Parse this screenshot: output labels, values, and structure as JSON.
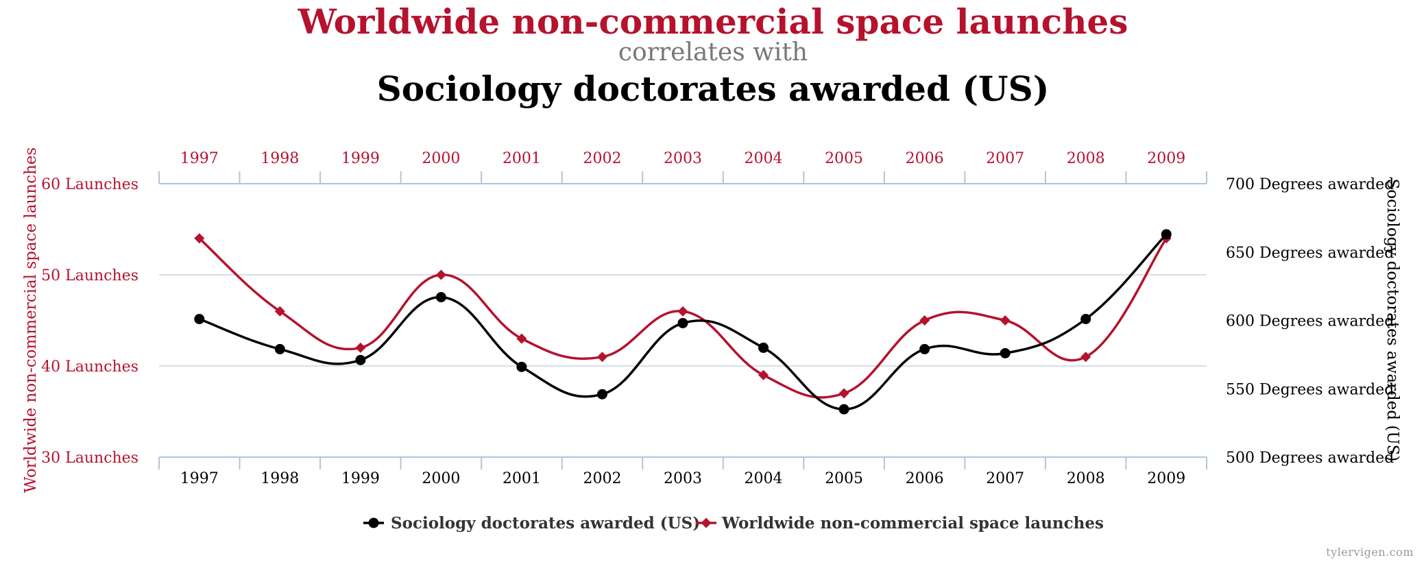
{
  "titles": {
    "primary": "Worldwide non-commercial space launches",
    "connector": "correlates with",
    "secondary": "Sociology doctorates awarded (US)"
  },
  "credit": "tylervigen.com",
  "colors": {
    "launches": "#b5122e",
    "doctorates": "#000000",
    "grid": "#c9d6e3",
    "axis": "#b0c4de"
  },
  "chart_data": {
    "type": "line",
    "x": [
      "1997",
      "1998",
      "1999",
      "2000",
      "2001",
      "2002",
      "2003",
      "2004",
      "2005",
      "2006",
      "2007",
      "2008",
      "2009"
    ],
    "series": [
      {
        "name": "Sociology doctorates awarded (US)",
        "axis": "right",
        "marker": "circle",
        "values": [
          601,
          579,
          571,
          617,
          566,
          546,
          598,
          580,
          535,
          579,
          576,
          601,
          663
        ]
      },
      {
        "name": "Worldwide non-commercial space launches",
        "axis": "left",
        "marker": "diamond",
        "values": [
          54,
          46,
          42,
          50,
          43,
          41,
          46,
          39,
          37,
          45,
          45,
          41,
          54
        ]
      }
    ],
    "y_left": {
      "label": "Worldwide non-commercial space launches",
      "range": [
        30,
        60
      ],
      "ticks": [
        "30 Launches",
        "40 Launches",
        "50 Launches",
        "60 Launches"
      ]
    },
    "y_right": {
      "label": "Sociology doctorates awarded (US)",
      "range": [
        500,
        700
      ],
      "ticks": [
        "500 Degrees awarded",
        "550 Degrees awarded",
        "600 Degrees awarded",
        "650 Degrees awarded",
        "700 Degrees awarded"
      ]
    },
    "grid": true,
    "legend_position": "bottom-center"
  }
}
